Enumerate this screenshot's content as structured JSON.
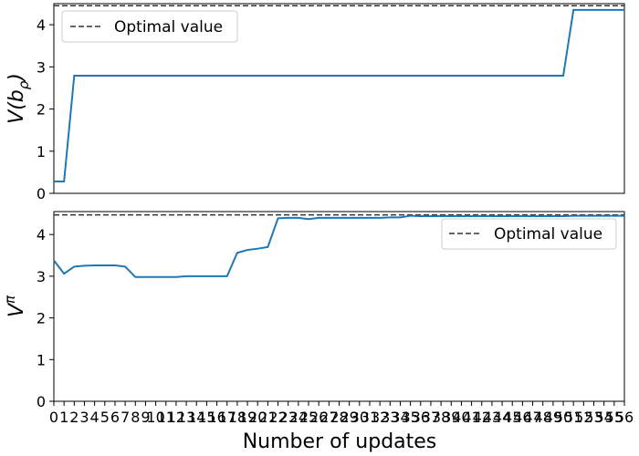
{
  "chart_data": [
    {
      "type": "line",
      "ylabel": "V(bρ)",
      "ylabel_base": "V(b",
      "ylabel_sub": "ρ",
      "ylabel_close": ")",
      "ylim": [
        0,
        4.5
      ],
      "yticks": [
        0,
        1,
        2,
        3,
        4
      ],
      "xlim": [
        0,
        56
      ],
      "legend": {
        "label": "Optimal value",
        "placement": "upper-left"
      },
      "optimal_value": 4.45,
      "series": [
        {
          "x": [
            0,
            1,
            2,
            3,
            4,
            5,
            6,
            7,
            8,
            9,
            10,
            11,
            12,
            13,
            14,
            15,
            16,
            17,
            18,
            19,
            20,
            21,
            22,
            23,
            24,
            25,
            26,
            27,
            28,
            29,
            30,
            31,
            32,
            33,
            34,
            35,
            36,
            37,
            38,
            39,
            40,
            41,
            42,
            43,
            44,
            45,
            46,
            47,
            48,
            49,
            50,
            51,
            52,
            53,
            54,
            55,
            56
          ],
          "values": [
            0.28,
            0.28,
            2.79,
            2.79,
            2.79,
            2.79,
            2.79,
            2.79,
            2.79,
            2.79,
            2.79,
            2.79,
            2.79,
            2.79,
            2.79,
            2.79,
            2.79,
            2.79,
            2.79,
            2.79,
            2.79,
            2.79,
            2.79,
            2.79,
            2.79,
            2.79,
            2.79,
            2.79,
            2.79,
            2.79,
            2.79,
            2.79,
            2.79,
            2.79,
            2.79,
            2.79,
            2.79,
            2.79,
            2.79,
            2.79,
            2.79,
            2.79,
            2.79,
            2.79,
            2.79,
            2.79,
            2.79,
            2.79,
            2.79,
            2.79,
            2.79,
            4.35,
            4.35,
            4.35,
            4.35,
            4.35,
            4.35
          ]
        }
      ]
    },
    {
      "type": "line",
      "ylabel": "Vπ",
      "ylabel_base": "V",
      "ylabel_sup": "π",
      "ylim": [
        0,
        4.55
      ],
      "yticks": [
        0,
        1,
        2,
        3,
        4
      ],
      "xlim": [
        0,
        56
      ],
      "xlabel": "Number of updates",
      "xticks": [
        0,
        1,
        2,
        3,
        4,
        5,
        6,
        7,
        8,
        9,
        10,
        11,
        12,
        13,
        14,
        15,
        16,
        17,
        18,
        19,
        20,
        21,
        22,
        23,
        24,
        25,
        26,
        27,
        28,
        29,
        30,
        31,
        32,
        33,
        34,
        35,
        36,
        37,
        38,
        39,
        40,
        41,
        42,
        43,
        44,
        45,
        46,
        47,
        48,
        49,
        50,
        51,
        52,
        53,
        54,
        55,
        56
      ],
      "legend": {
        "label": "Optimal value",
        "placement": "upper-right"
      },
      "optimal_value": 4.47,
      "series": [
        {
          "x": [
            0,
            1,
            2,
            3,
            4,
            5,
            6,
            7,
            8,
            9,
            10,
            11,
            12,
            13,
            14,
            15,
            16,
            17,
            18,
            19,
            20,
            21,
            22,
            23,
            24,
            25,
            26,
            27,
            28,
            29,
            30,
            31,
            32,
            33,
            34,
            35,
            36,
            37,
            38,
            39,
            40,
            41,
            42,
            43,
            44,
            45,
            46,
            47,
            48,
            49,
            50,
            51,
            52,
            53,
            54,
            55,
            56
          ],
          "values": [
            3.38,
            3.06,
            3.23,
            3.25,
            3.26,
            3.26,
            3.26,
            3.23,
            2.98,
            2.98,
            2.98,
            2.98,
            2.98,
            3.0,
            3.0,
            3.0,
            3.0,
            3.0,
            3.56,
            3.63,
            3.66,
            3.7,
            4.39,
            4.4,
            4.4,
            4.37,
            4.4,
            4.4,
            4.4,
            4.4,
            4.4,
            4.4,
            4.4,
            4.41,
            4.41,
            4.45,
            4.44,
            4.44,
            4.44,
            4.44,
            4.44,
            4.44,
            4.44,
            4.44,
            4.44,
            4.44,
            4.44,
            4.44,
            4.44,
            4.44,
            4.44,
            4.45,
            4.45,
            4.45,
            4.45,
            4.45,
            4.45
          ]
        }
      ]
    }
  ]
}
